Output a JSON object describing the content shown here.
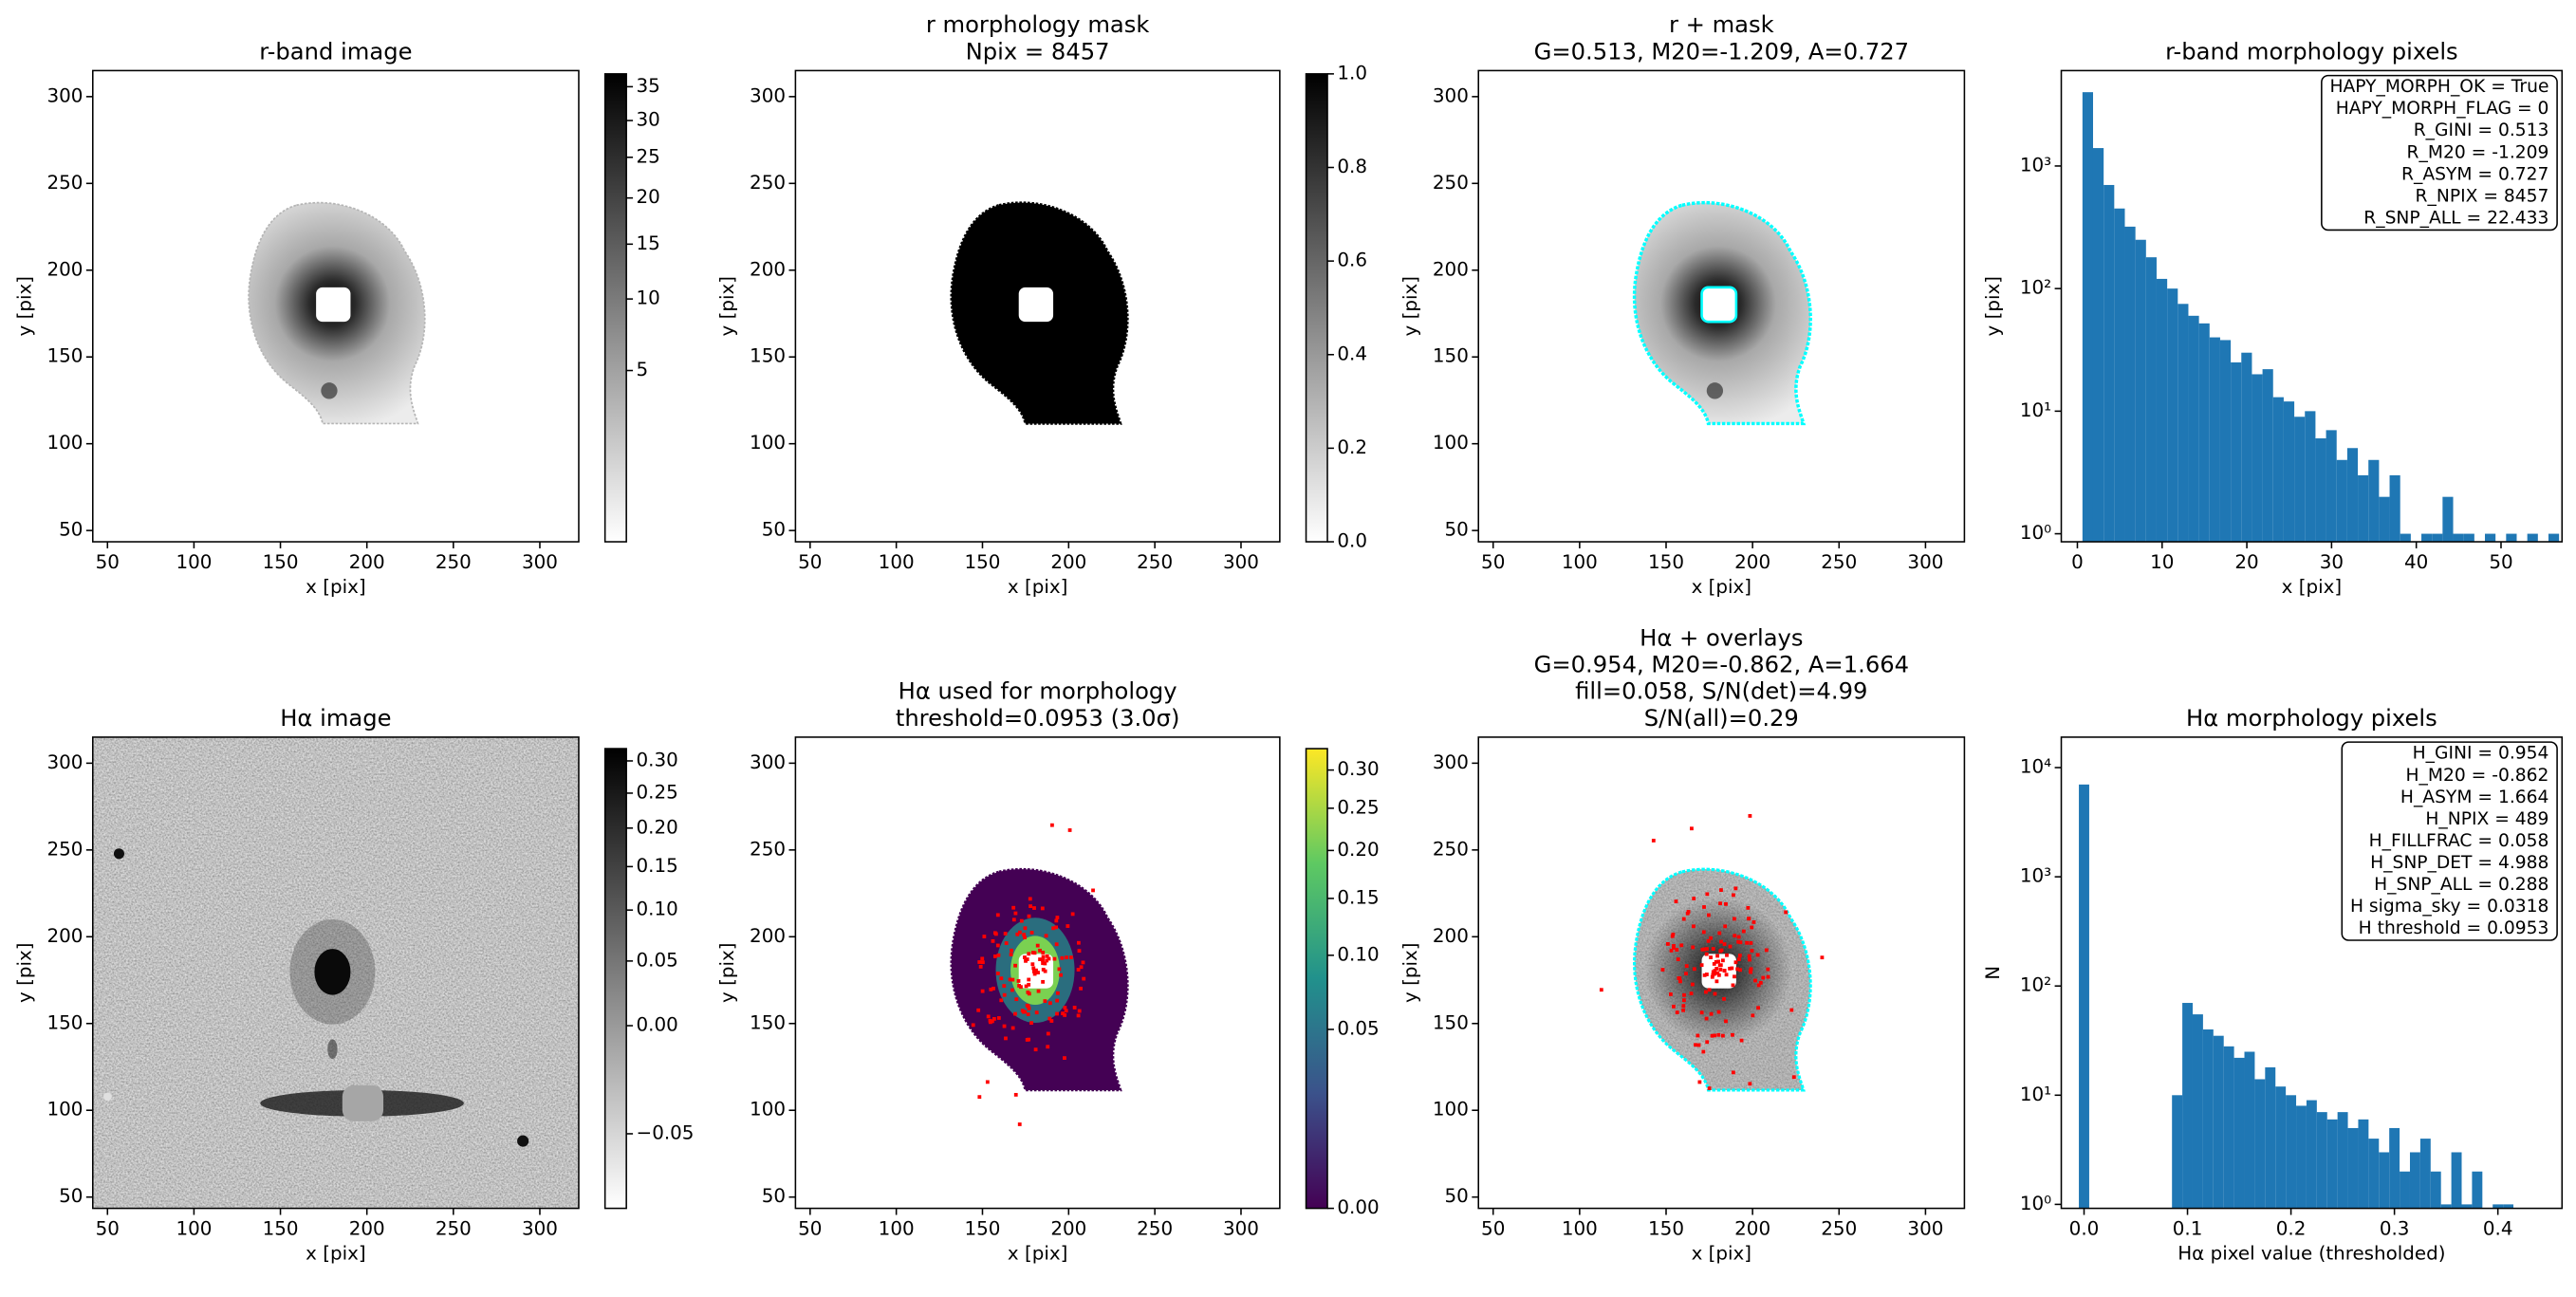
{
  "chart_data": [
    {
      "type": "image",
      "title": [
        "r-band image"
      ],
      "xlabel": "x [pix]",
      "ylabel": "y [pix]",
      "xlim": [
        41.5,
        322.5
      ],
      "ylim": [
        43.5,
        315
      ],
      "xticks": [
        50,
        100,
        150,
        200,
        250,
        300
      ],
      "yticks": [
        50,
        100,
        150,
        200,
        250,
        300
      ],
      "colorbar": {
        "cmap": "gray_r",
        "scale": "sqrt",
        "clim": [
          0.05,
          37
        ],
        "ticks": [
          5,
          10,
          15,
          20,
          25,
          30,
          35
        ]
      }
    },
    {
      "type": "image",
      "title": [
        "r morphology mask",
        "Npix = 8457"
      ],
      "xlabel": "x [pix]",
      "ylabel": "y [pix]",
      "xlim": [
        41.5,
        322.5
      ],
      "ylim": [
        43.5,
        315
      ],
      "xticks": [
        50,
        100,
        150,
        200,
        250,
        300
      ],
      "yticks": [
        50,
        100,
        150,
        200,
        250,
        300
      ],
      "colorbar": {
        "cmap": "gray_r",
        "scale": "linear",
        "clim": [
          0,
          1
        ],
        "ticks": [
          {
            "value": 0,
            "label": "0.0"
          },
          0.2,
          0.4,
          0.6,
          0.8,
          {
            "value": 1,
            "label": "1.0"
          }
        ]
      }
    },
    {
      "type": "image",
      "title": [
        "r + mask",
        "G=0.513, M20=-1.209, A=0.727"
      ],
      "xlabel": "x [pix]",
      "ylabel": "y [pix]",
      "xlim": [
        41.5,
        322.5
      ],
      "ylim": [
        43.5,
        315
      ],
      "xticks": [
        50,
        100,
        150,
        200,
        250,
        300
      ],
      "yticks": [
        50,
        100,
        150,
        200,
        250,
        300
      ]
    },
    {
      "type": "histogram",
      "title": [
        "r-band morphology pixels"
      ],
      "xlabel": "x [pix]",
      "ylabel": "y [pix]",
      "xlim": [
        -1.9,
        57.2
      ],
      "ylim": [
        0.86,
        6000
      ],
      "yscale": "log",
      "color": "#1f77b4",
      "xticks": [
        0,
        10,
        20,
        30,
        40,
        50
      ],
      "yticks": [
        {
          "value": 1,
          "label": "10⁰"
        },
        {
          "value": 10,
          "label": "10¹"
        },
        {
          "value": 100,
          "label": "10²"
        },
        {
          "value": 1000,
          "label": "10³"
        }
      ],
      "bins": [
        0.6,
        1.85,
        3.1,
        4.35,
        5.6,
        6.85,
        8.1,
        9.35,
        10.6,
        11.85,
        13.1,
        14.35,
        15.6,
        16.85,
        18.1,
        19.35,
        20.6,
        21.85,
        23.1,
        24.35,
        25.6,
        26.85,
        28.1,
        29.35,
        30.6,
        31.85,
        33.1,
        34.35,
        35.6,
        36.85,
        38.1,
        39.35,
        40.6,
        41.85,
        43.1,
        44.35,
        45.6,
        46.85,
        48.1,
        49.35,
        50.6,
        51.85,
        53.1,
        54.35,
        55.6,
        56.85
      ],
      "counts": [
        4000,
        1400,
        700,
        450,
        320,
        250,
        180,
        120,
        100,
        75,
        60,
        52,
        40,
        38,
        25,
        30,
        20,
        22,
        13,
        12,
        9,
        10,
        6,
        7,
        4,
        5,
        3,
        4,
        2,
        3,
        1,
        0,
        1,
        1,
        2,
        1,
        1,
        0,
        1,
        0,
        1,
        0,
        1,
        0,
        1
      ],
      "annotation": [
        "HAPY_MORPH_OK = True",
        "HAPY_MORPH_FLAG = 0",
        "R_GINI = 0.513",
        "R_M20 = -1.209",
        "R_ASYM = 0.727",
        "R_NPIX = 8457",
        "R_SNP_ALL = 22.433"
      ]
    },
    {
      "type": "image",
      "title": [
        "Hα image"
      ],
      "xlabel": "x [pix]",
      "ylabel": "y [pix]",
      "xlim": [
        41.5,
        322.5
      ],
      "ylim": [
        43.5,
        315
      ],
      "xticks": [
        50,
        100,
        150,
        200,
        250,
        300
      ],
      "yticks": [
        50,
        100,
        150,
        200,
        250,
        300
      ],
      "colorbar": {
        "cmap": "gray_r",
        "scale": "sqrt",
        "clim": [
          -0.06,
          0.32
        ],
        "ticks": [
          {
            "value": -0.05,
            "label": "−0.05"
          },
          {
            "value": 0,
            "label": "0.00"
          },
          0.05,
          {
            "value": 0.1,
            "label": "0.10"
          },
          0.15,
          {
            "value": 0.2,
            "label": "0.20"
          },
          0.25,
          {
            "value": 0.3,
            "label": "0.30"
          }
        ]
      }
    },
    {
      "type": "image",
      "title": [
        "Hα used for morphology",
        "threshold=0.0953 (3.0σ)"
      ],
      "xlabel": "x [pix]",
      "ylabel": "y [pix]",
      "xlim": [
        41.5,
        322.5
      ],
      "ylim": [
        43.5,
        315
      ],
      "xticks": [
        50,
        100,
        150,
        200,
        250,
        300
      ],
      "yticks": [
        50,
        100,
        150,
        200,
        250,
        300
      ],
      "colorbar": {
        "cmap": "viridis",
        "scale": "sqrt",
        "clim": [
          0,
          0.33
        ],
        "ticks": [
          {
            "value": 0,
            "label": "0.00"
          },
          0.05,
          {
            "value": 0.1,
            "label": "0.10"
          },
          0.15,
          {
            "value": 0.2,
            "label": "0.20"
          },
          0.25,
          {
            "value": 0.3,
            "label": "0.30"
          }
        ]
      }
    },
    {
      "type": "image",
      "title": [
        "Hα + overlays",
        "G=0.954, M20=-0.862, A=1.664",
        "fill=0.058, S/N(det)=4.99",
        "S/N(all)=0.29"
      ],
      "xlabel": "x [pix]",
      "ylabel": "y [pix]",
      "xlim": [
        41.5,
        322.5
      ],
      "ylim": [
        43.5,
        315
      ],
      "xticks": [
        50,
        100,
        150,
        200,
        250,
        300
      ],
      "yticks": [
        50,
        100,
        150,
        200,
        250,
        300
      ]
    },
    {
      "type": "histogram",
      "title": [
        "Hα morphology pixels"
      ],
      "xlabel": "Hα pixel value (thresholded)",
      "ylabel": "N",
      "xlim": [
        -0.022,
        0.462
      ],
      "ylim": [
        0.92,
        19000
      ],
      "yscale": "log",
      "color": "#1f77b4",
      "xticks": [
        {
          "value": 0,
          "label": "0.0"
        },
        0.1,
        0.2,
        0.3,
        0.4
      ],
      "yticks": [
        {
          "value": 1,
          "label": "10⁰"
        },
        {
          "value": 10,
          "label": "10¹"
        },
        {
          "value": 100,
          "label": "10²"
        },
        {
          "value": 1000,
          "label": "10³"
        },
        {
          "value": 10000,
          "label": "10⁴"
        }
      ],
      "bins": [
        -0.005,
        0.005,
        0.015,
        0.025,
        0.035,
        0.045,
        0.055,
        0.065,
        0.075,
        0.085,
        0.095,
        0.105,
        0.115,
        0.125,
        0.135,
        0.145,
        0.155,
        0.165,
        0.175,
        0.185,
        0.195,
        0.205,
        0.215,
        0.225,
        0.235,
        0.245,
        0.255,
        0.265,
        0.275,
        0.285,
        0.295,
        0.305,
        0.315,
        0.325,
        0.335,
        0.345,
        0.355,
        0.365,
        0.375,
        0.385,
        0.395,
        0.405,
        0.415
      ],
      "counts": [
        7000,
        0,
        0,
        0,
        0,
        0,
        0,
        0,
        0,
        10,
        70,
        55,
        40,
        35,
        28,
        22,
        25,
        14,
        18,
        12,
        10,
        8,
        9,
        7,
        6,
        7,
        5,
        6,
        4,
        3,
        5,
        2,
        3,
        4,
        2,
        1,
        3,
        1,
        2,
        0,
        1,
        1
      ],
      "annotation": [
        "H_GINI = 0.954",
        "H_M20 = -0.862",
        "H_ASYM = 1.664",
        "H_NPIX = 489",
        "H_FILLFRAC = 0.058",
        "H_SNP_DET = 4.988",
        "H_SNP_ALL = 0.288",
        "H sigma_sky = 0.0318",
        "H threshold = 0.0953"
      ]
    }
  ]
}
